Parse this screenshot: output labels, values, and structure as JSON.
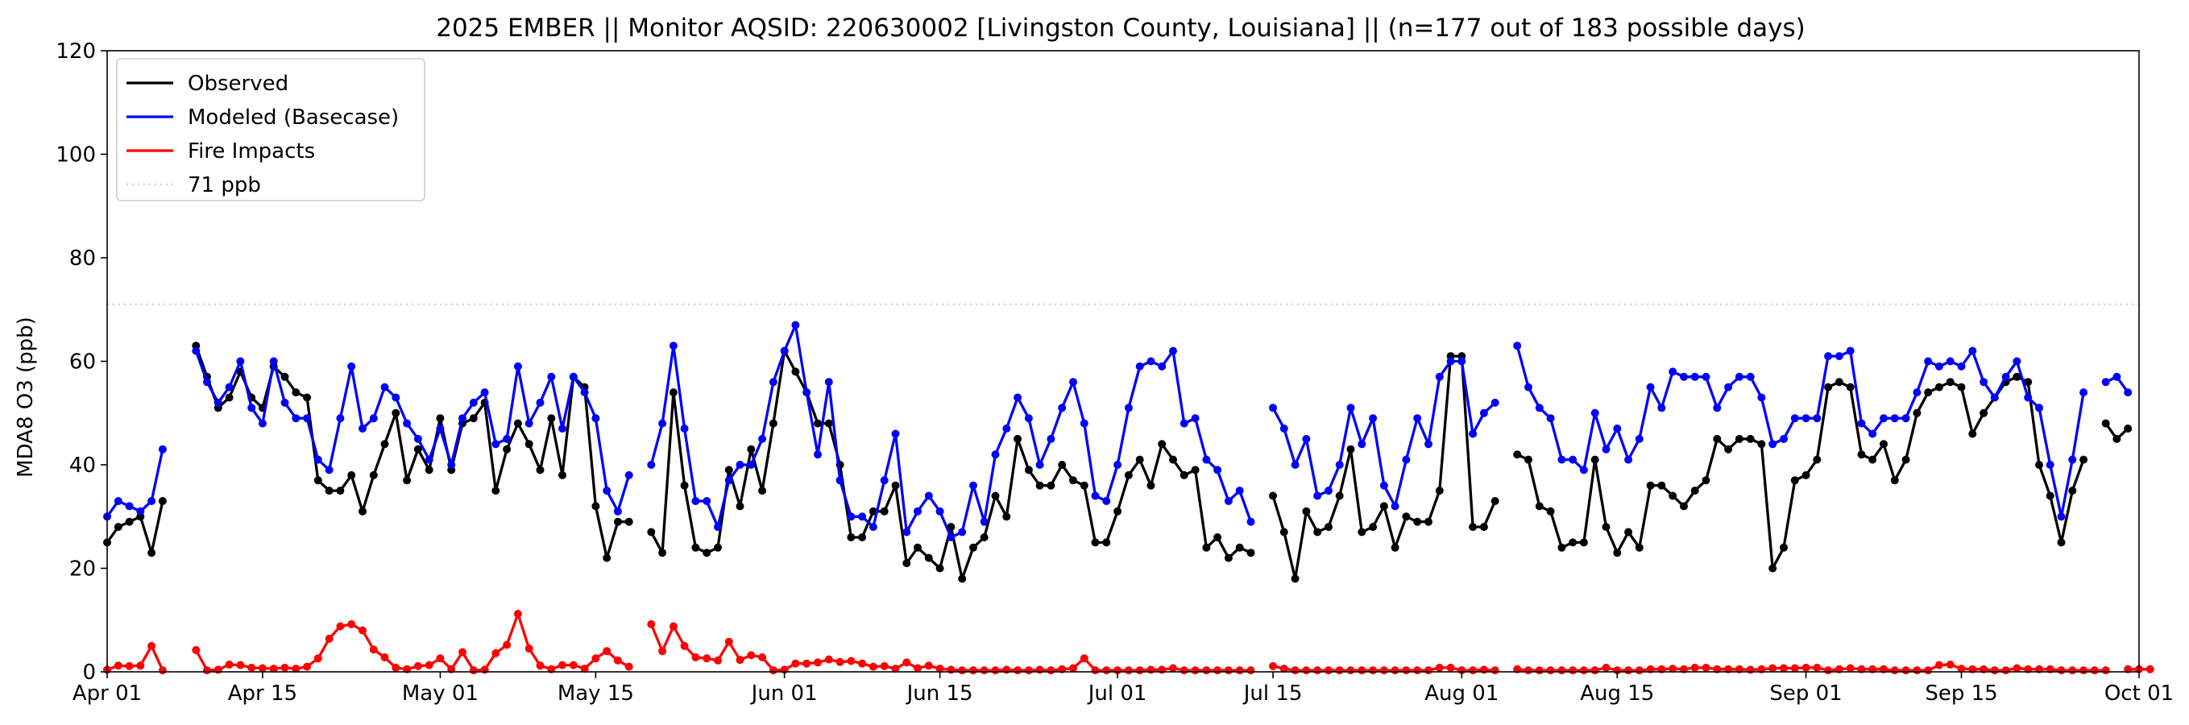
{
  "chart_data": {
    "type": "line",
    "title": "2025 EMBER || Monitor AQSID: 220630002 [Livingston County, Louisiana] || (n=177 out of 183 possible days)",
    "xlabel": "",
    "ylabel": "MDA8 O3 (ppb)",
    "x_start": "2025-04-01",
    "x_end": "2025-10-01",
    "xticks": [
      {
        "date": "2025-04-01",
        "label": "Apr 01"
      },
      {
        "date": "2025-04-15",
        "label": "Apr 15"
      },
      {
        "date": "2025-05-01",
        "label": "May 01"
      },
      {
        "date": "2025-05-15",
        "label": "May 15"
      },
      {
        "date": "2025-06-01",
        "label": "Jun 01"
      },
      {
        "date": "2025-06-15",
        "label": "Jun 15"
      },
      {
        "date": "2025-07-01",
        "label": "Jul 01"
      },
      {
        "date": "2025-07-15",
        "label": "Jul 15"
      },
      {
        "date": "2025-08-01",
        "label": "Aug 01"
      },
      {
        "date": "2025-08-15",
        "label": "Aug 15"
      },
      {
        "date": "2025-09-01",
        "label": "Sep 01"
      },
      {
        "date": "2025-09-15",
        "label": "Sep 15"
      },
      {
        "date": "2025-10-01",
        "label": "Oct 01"
      }
    ],
    "ylim": [
      0,
      120
    ],
    "yticks": [
      0,
      20,
      40,
      60,
      80,
      100,
      120
    ],
    "grid": false,
    "legend_position": "top-left",
    "reference_line": {
      "name": "71 ppb",
      "value": 71,
      "color": "#d3d3d3",
      "style": "dotted"
    },
    "series": [
      {
        "name": "Observed",
        "color": "#000000",
        "start_date": "2025-04-01",
        "values": [
          25,
          28,
          29,
          30,
          23,
          33,
          null,
          null,
          63,
          57,
          51,
          53,
          58,
          53,
          51,
          59,
          57,
          54,
          53,
          37,
          35,
          35,
          38,
          31,
          38,
          44,
          50,
          37,
          43,
          39,
          49,
          39,
          48,
          49,
          52,
          35,
          43,
          48,
          44,
          39,
          49,
          38,
          57,
          55,
          32,
          22,
          29,
          29,
          null,
          27,
          23,
          54,
          36,
          24,
          23,
          24,
          39,
          32,
          43,
          35,
          48,
          62,
          58,
          54,
          48,
          48,
          40,
          26,
          26,
          31,
          31,
          36,
          21,
          24,
          22,
          20,
          28,
          18,
          24,
          26,
          34,
          30,
          45,
          39,
          36,
          36,
          40,
          37,
          36,
          25,
          25,
          31,
          38,
          41,
          36,
          44,
          41,
          38,
          39,
          24,
          26,
          22,
          24,
          23,
          null,
          34,
          27,
          18,
          31,
          27,
          28,
          34,
          43,
          27,
          28,
          32,
          24,
          30,
          29,
          29,
          35,
          61,
          61,
          28,
          28,
          33,
          null,
          42,
          41,
          32,
          31,
          24,
          25,
          25,
          41,
          28,
          23,
          27,
          24,
          36,
          36,
          34,
          32,
          35,
          37,
          45,
          43,
          45,
          45,
          44,
          20,
          24,
          37,
          38,
          41,
          55,
          56,
          55,
          42,
          41,
          44,
          37,
          41,
          50,
          54,
          55,
          56,
          55,
          46,
          50,
          53,
          56,
          57,
          56,
          40,
          34,
          25,
          35,
          41,
          null,
          48,
          45,
          47
        ]
      },
      {
        "name": "Modeled (Basecase)",
        "color": "#0000ff",
        "start_date": "2025-04-01",
        "values": [
          30,
          33,
          32,
          31,
          33,
          43,
          null,
          null,
          62,
          56,
          52,
          55,
          60,
          51,
          48,
          60,
          52,
          49,
          49,
          41,
          39,
          49,
          59,
          47,
          49,
          55,
          53,
          48,
          45,
          41,
          47,
          40,
          49,
          52,
          54,
          44,
          45,
          59,
          48,
          52,
          57,
          47,
          57,
          54,
          49,
          35,
          31,
          38,
          null,
          40,
          48,
          63,
          47,
          33,
          33,
          28,
          37,
          40,
          40,
          45,
          56,
          62,
          67,
          54,
          42,
          56,
          37,
          30,
          30,
          28,
          37,
          46,
          27,
          31,
          34,
          31,
          26,
          27,
          36,
          29,
          42,
          47,
          53,
          49,
          40,
          45,
          51,
          56,
          48,
          34,
          33,
          40,
          51,
          59,
          60,
          59,
          62,
          48,
          49,
          41,
          39,
          33,
          35,
          29,
          null,
          51,
          47,
          40,
          45,
          34,
          35,
          40,
          51,
          44,
          49,
          36,
          32,
          41,
          49,
          44,
          57,
          60,
          60,
          46,
          50,
          52,
          null,
          63,
          55,
          51,
          49,
          41,
          41,
          39,
          50,
          43,
          47,
          41,
          45,
          55,
          51,
          58,
          57,
          57,
          57,
          51,
          55,
          57,
          57,
          53,
          44,
          45,
          49,
          49,
          49,
          61,
          61,
          62,
          48,
          46,
          49,
          49,
          49,
          54,
          60,
          59,
          60,
          59,
          62,
          56,
          53,
          57,
          60,
          53,
          51,
          40,
          30,
          41,
          54,
          null,
          56,
          57,
          54
        ]
      },
      {
        "name": "Fire Impacts",
        "color": "#ff0000",
        "start_date": "2025-04-01",
        "values": [
          0.4,
          1.2,
          1.1,
          1.2,
          5.0,
          0.3,
          null,
          null,
          4.2,
          0.3,
          0.4,
          1.4,
          1.3,
          0.8,
          0.7,
          0.6,
          0.8,
          0.6,
          1.0,
          2.6,
          6.4,
          8.8,
          9.2,
          8.0,
          4.3,
          2.8,
          0.8,
          0.5,
          1.1,
          1.3,
          2.6,
          0.5,
          3.8,
          0.3,
          0.4,
          3.6,
          5.2,
          11.2,
          4.5,
          1.2,
          0.5,
          1.3,
          1.3,
          0.6,
          2.6,
          4.0,
          2.2,
          1.0,
          null,
          9.2,
          4.0,
          8.8,
          5.0,
          2.8,
          2.6,
          2.2,
          5.8,
          2.3,
          3.2,
          2.8,
          0.3,
          0.4,
          1.6,
          1.6,
          1.8,
          2.4,
          1.9,
          2.1,
          1.6,
          1.0,
          1.1,
          0.6,
          1.8,
          0.7,
          1.2,
          0.6,
          0.4,
          0.3,
          0.3,
          0.3,
          0.3,
          0.4,
          0.3,
          0.3,
          0.4,
          0.3,
          0.5,
          0.7,
          2.6,
          0.3,
          0.3,
          0.3,
          0.3,
          0.3,
          0.4,
          0.4,
          0.7,
          0.3,
          0.3,
          0.3,
          0.3,
          0.3,
          0.3,
          0.3,
          null,
          1.1,
          0.6,
          0.3,
          0.3,
          0.3,
          0.3,
          0.3,
          0.3,
          0.3,
          0.3,
          0.3,
          0.3,
          0.3,
          0.3,
          0.3,
          0.8,
          0.8,
          0.3,
          0.3,
          0.4,
          0.3,
          null,
          0.5,
          0.3,
          0.3,
          0.3,
          0.3,
          0.3,
          0.3,
          0.3,
          0.8,
          0.3,
          0.3,
          0.3,
          0.5,
          0.5,
          0.6,
          0.5,
          0.8,
          0.8,
          0.5,
          0.5,
          0.5,
          0.4,
          0.5,
          0.7,
          0.7,
          0.7,
          0.8,
          0.8,
          0.3,
          0.5,
          0.7,
          0.5,
          0.5,
          0.5,
          0.3,
          0.3,
          0.3,
          0.3,
          1.3,
          1.4,
          0.6,
          0.5,
          0.5,
          0.3,
          0.3,
          0.7,
          0.5,
          0.5,
          0.5,
          0.3,
          0.3,
          0.3,
          0.3,
          0.3,
          null,
          0.5,
          0.5,
          0.5
        ]
      }
    ]
  }
}
